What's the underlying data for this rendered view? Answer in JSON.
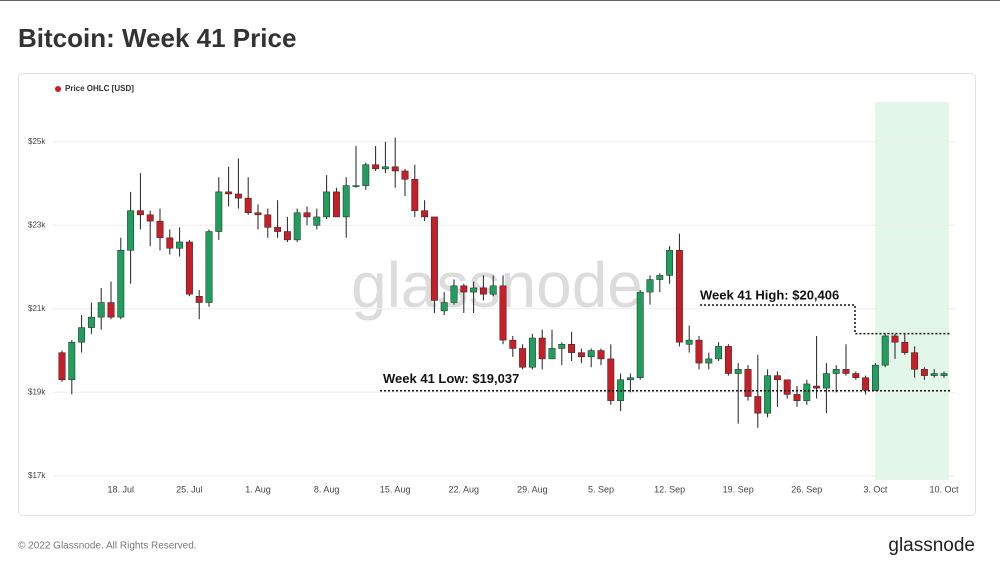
{
  "chart_data": {
    "type": "candlestick",
    "title": "Bitcoin: Week 41 Price",
    "legend": "Price OHLC [USD]",
    "watermark": "glassnode",
    "footer": "© 2022 Glassnode. All Rights Reserved.",
    "logo": "glassnode",
    "up_color": "#1f9e5e",
    "down_color": "#c81e27",
    "categories": [
      null,
      null,
      null,
      null,
      null,
      null,
      "18. Jul",
      null,
      null,
      null,
      null,
      null,
      null,
      "25. Jul",
      null,
      null,
      null,
      null,
      null,
      null,
      "1. Aug",
      null,
      null,
      null,
      null,
      null,
      null,
      "8. Aug",
      null,
      null,
      null,
      null,
      null,
      null,
      "15. Aug",
      null,
      null,
      null,
      null,
      null,
      null,
      "22. Aug",
      null,
      null,
      null,
      null,
      null,
      null,
      "29. Aug",
      null,
      null,
      null,
      null,
      null,
      null,
      "5. Sep",
      null,
      null,
      null,
      null,
      null,
      null,
      "12. Sep",
      null,
      null,
      null,
      null,
      null,
      null,
      "19. Sep",
      null,
      null,
      null,
      null,
      null,
      null,
      "26. Sep",
      null,
      null,
      null,
      null,
      null,
      null,
      "3. Oct",
      null,
      null,
      null,
      null,
      null,
      null,
      "10. Oct"
    ],
    "open": [
      19950,
      19300,
      20200,
      20550,
      20800,
      21150,
      20800,
      22400,
      23350,
      23250,
      23100,
      22700,
      22450,
      22600,
      21300,
      21150,
      22850,
      23800,
      23750,
      23650,
      23300,
      23250,
      22950,
      22850,
      22650,
      23300,
      23000,
      23200,
      23800,
      23200,
      23950,
      23950,
      24450,
      24350,
      24400,
      24300,
      24100,
      23350,
      23200,
      20950,
      21150,
      21550,
      21400,
      21500,
      21350,
      21550,
      20250,
      20050,
      19600,
      20300,
      19800,
      20050,
      20150,
      19950,
      19850,
      20000,
      19800,
      18800,
      19300,
      19350,
      21400,
      21700,
      21800,
      22400,
      20150,
      20250,
      19700,
      19800,
      20100,
      19450,
      19550,
      18900,
      18500,
      19400,
      19300,
      18950,
      18800,
      19150,
      19100,
      19450,
      19550,
      19450,
      19350,
      19050,
      19650,
      20350,
      20200,
      19950,
      19550,
      19400,
      19400
    ],
    "high": [
      20000,
      20250,
      20850,
      21150,
      21500,
      21650,
      22700,
      23800,
      24250,
      23350,
      23400,
      22900,
      22950,
      22650,
      21450,
      22900,
      24150,
      24400,
      24600,
      24150,
      23500,
      23400,
      23600,
      23200,
      23400,
      23450,
      23400,
      24200,
      23900,
      24150,
      24900,
      24500,
      24900,
      25000,
      25100,
      24350,
      24450,
      23600,
      23200,
      21400,
      21700,
      21600,
      21650,
      21800,
      21800,
      21800,
      20350,
      20150,
      20400,
      20500,
      20500,
      20200,
      20450,
      20050,
      20050,
      20050,
      20150,
      19450,
      19450,
      21450,
      21800,
      21850,
      22500,
      22800,
      20600,
      20350,
      19950,
      20200,
      20150,
      19700,
      19650,
      19900,
      19550,
      19500,
      19300,
      19150,
      19300,
      20350,
      19700,
      19650,
      20150,
      19500,
      19400,
      19700,
      20406,
      20400,
      20400,
      20100,
      19600,
      19550,
      19500
    ],
    "low": [
      19250,
      18950,
      19950,
      20400,
      20500,
      20750,
      20750,
      21600,
      22900,
      22500,
      22400,
      22300,
      22250,
      21300,
      20750,
      21050,
      22650,
      23450,
      23400,
      23250,
      22900,
      22700,
      22700,
      22600,
      22600,
      23000,
      22900,
      23150,
      23200,
      22700,
      23900,
      23850,
      24300,
      24250,
      23900,
      23700,
      23200,
      23100,
      20900,
      20850,
      21100,
      20900,
      20900,
      21200,
      21300,
      20150,
      19850,
      19550,
      19550,
      19550,
      19800,
      19650,
      19750,
      19700,
      19600,
      19650,
      18700,
      18550,
      19000,
      19300,
      21100,
      21400,
      21600,
      20100,
      19950,
      19550,
      19550,
      19750,
      19400,
      18250,
      18800,
      18150,
      18400,
      18650,
      18850,
      18650,
      18700,
      18850,
      18500,
      19000,
      19400,
      19300,
      18950,
      19037,
      19600,
      19800,
      19900,
      19350,
      19300,
      19350,
      19350
    ],
    "close": [
      19300,
      20200,
      20550,
      20800,
      21150,
      20800,
      22400,
      23350,
      23250,
      23100,
      22700,
      22450,
      22600,
      21350,
      21150,
      22850,
      23800,
      23750,
      23650,
      23300,
      23250,
      22950,
      22850,
      22650,
      23300,
      23200,
      23200,
      23800,
      23200,
      23950,
      23950,
      24450,
      24350,
      24400,
      24300,
      24100,
      23350,
      23200,
      21200,
      21150,
      21550,
      21400,
      21500,
      21350,
      21550,
      20250,
      20050,
      19600,
      20300,
      19800,
      20050,
      20150,
      19950,
      19850,
      20000,
      19800,
      18800,
      19300,
      19350,
      21400,
      21700,
      21800,
      22400,
      20200,
      20250,
      19700,
      19800,
      20100,
      19450,
      19550,
      18900,
      18500,
      19400,
      19300,
      18950,
      18800,
      19200,
      19100,
      19450,
      19550,
      19450,
      19350,
      19050,
      19650,
      20350,
      20200,
      19950,
      19550,
      19400,
      19450,
      19450
    ],
    "ylim": [
      16900,
      26000
    ],
    "yticks": [
      {
        "value": 17000,
        "label": "$17k"
      },
      {
        "value": 19000,
        "label": "$19k"
      },
      {
        "value": 21000,
        "label": "$21k"
      },
      {
        "value": 23000,
        "label": "$23k"
      },
      {
        "value": 25000,
        "label": "$25k"
      }
    ],
    "grid": true,
    "annotations": [
      {
        "text": "Week 41 High: $20,406",
        "value": 20406
      },
      {
        "text": "Week 41 Low: $19,037",
        "value": 19037
      }
    ]
  }
}
